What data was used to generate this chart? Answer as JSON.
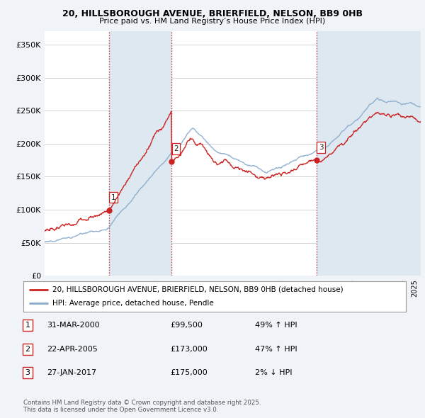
{
  "title_line1": "20, HILLSBOROUGH AVENUE, BRIERFIELD, NELSON, BB9 0HB",
  "title_line2": "Price paid vs. HM Land Registry’s House Price Index (HPI)",
  "ylim": [
    0,
    370000
  ],
  "yticks": [
    0,
    50000,
    100000,
    150000,
    200000,
    250000,
    300000,
    350000
  ],
  "ytick_labels": [
    "£0",
    "£50K",
    "£100K",
    "£150K",
    "£200K",
    "£250K",
    "£300K",
    "£350K"
  ],
  "xmin": 1995,
  "xmax": 2025.5,
  "sale_dates": [
    2000.25,
    2005.31,
    2017.07
  ],
  "sale_prices": [
    99500,
    173000,
    175000
  ],
  "sale_labels": [
    "1",
    "2",
    "3"
  ],
  "red_line_color": "#cc2222",
  "blue_line_color": "#88aacc",
  "shade_color": "#dde8f0",
  "legend_label_red": "20, HILLSBOROUGH AVENUE, BRIERFIELD, NELSON, BB9 0HB (detached house)",
  "legend_label_blue": "HPI: Average price, detached house, Pendle",
  "transaction_rows": [
    {
      "num": "1",
      "date": "31-MAR-2000",
      "price": "£99,500",
      "hpi": "49% ↑ HPI"
    },
    {
      "num": "2",
      "date": "22-APR-2005",
      "price": "£173,000",
      "hpi": "47% ↑ HPI"
    },
    {
      "num": "3",
      "date": "27-JAN-2017",
      "price": "£175,000",
      "hpi": "2% ↓ HPI"
    }
  ],
  "footnote": "Contains HM Land Registry data © Crown copyright and database right 2025.\nThis data is licensed under the Open Government Licence v3.0.",
  "bg_color": "#f0f4f8"
}
